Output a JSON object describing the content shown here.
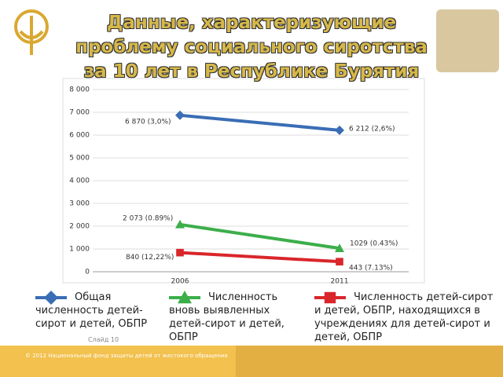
{
  "chart_data": {
    "type": "line",
    "title": "Данные, характеризующие проблему социального сиротства за 10 лет в Республике Бурятия",
    "categories": [
      "2006",
      "2011"
    ],
    "ylim": [
      0,
      8000
    ],
    "yticks": [
      0,
      {
        "value": 1000,
        "label": "1 000"
      },
      {
        "value": 2000,
        "label": "2 000"
      },
      {
        "value": 3000,
        "label": "3 000"
      },
      {
        "value": 4000,
        "label": "4 000"
      },
      {
        "value": 5000,
        "label": "5 000"
      },
      {
        "value": 6000,
        "label": "6 000"
      },
      {
        "value": 7000,
        "label": "7 000"
      },
      {
        "value": 8000,
        "label": "8 000"
      }
    ],
    "grid": true,
    "series": [
      {
        "name": "Общая численность детей-сирот и детей, ОБПР",
        "color": "#3a6db5",
        "marker": "diamond",
        "values": [
          6870,
          6212
        ],
        "value_labels": [
          "6 870 (3,0%)",
          "6 212 (2,6%)"
        ]
      },
      {
        "name": "Численность вновь выявленных детей-сирот и детей, ОБПР",
        "color": "#3cae4a",
        "marker": "triangle",
        "values": [
          2073,
          1029
        ],
        "value_labels": [
          "2 073 (0.89%)",
          "1029 (0.43%)"
        ]
      },
      {
        "name": "Численность детей-сирот и детей, ОБПР, находящихся в учреждениях для детей-сирот и детей, ОБПР",
        "color": "#d9262b",
        "marker": "square",
        "values": [
          840,
          443
        ],
        "value_labels": [
          "840 (12,22%)",
          "443 (7.13%)"
        ]
      }
    ]
  },
  "footer": {
    "slide": "Слайд 10",
    "copyright": "© 2012 Национальный фонд защиты детей от жестокого обращения"
  }
}
